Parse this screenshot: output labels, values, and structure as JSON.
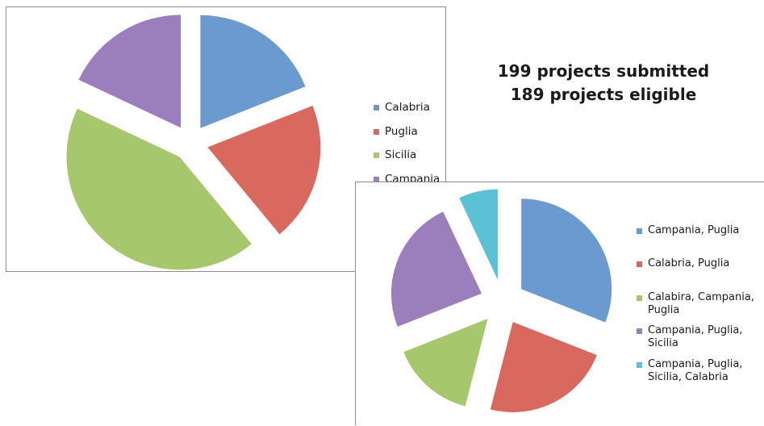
{
  "summary": {
    "submitted": "199 projects submitted",
    "eligible": "189 projects eligible"
  },
  "chart_data": [
    {
      "type": "pie",
      "title": "",
      "categories": [
        "Calabria",
        "Puglia",
        "Sicilia",
        "Campania"
      ],
      "values": [
        19,
        20,
        43,
        18
      ],
      "colors": [
        "#6a9ad0",
        "#d9695f",
        "#a6c76b",
        "#9b7fbd"
      ],
      "legend": "right",
      "exploded": true
    },
    {
      "type": "pie",
      "title": "",
      "categories": [
        "Campania, Puglia",
        "Calabria, Puglia",
        "Calabira, Campania, Puglia",
        "Campania, Puglia, Sicilia",
        "Campania, Puglia, Sicilia, Calabria"
      ],
      "values": [
        31,
        23,
        15,
        24,
        7
      ],
      "colors": [
        "#6a9ad0",
        "#d9695f",
        "#a6c76b",
        "#9b7fbd",
        "#5bc1d5"
      ],
      "legend": "right",
      "exploded": true
    }
  ]
}
